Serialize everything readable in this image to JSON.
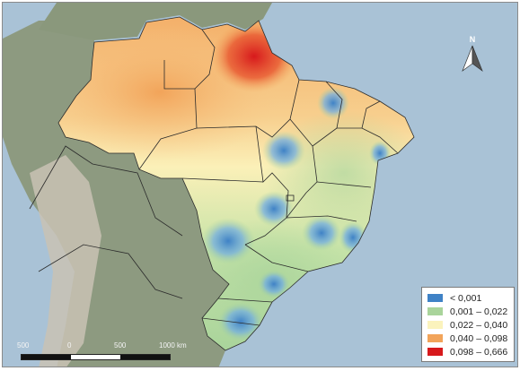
{
  "map": {
    "legend": {
      "items": [
        {
          "label": "< 0,001",
          "color": "#3f82c6"
        },
        {
          "label": "0,001 – 0,022",
          "color": "#a9d49b"
        },
        {
          "label": "0,022 – 0,040",
          "color": "#fbf3bd"
        },
        {
          "label": "0,040 – 0,098",
          "color": "#f2a45a"
        },
        {
          "label": "0,098 – 0,666",
          "color": "#d7191c"
        }
      ]
    },
    "scalebar": {
      "labels": [
        "500",
        "0",
        "500",
        "1000 km"
      ]
    },
    "north_arrow": {
      "letter": "N",
      "icon": "north-arrow-icon"
    },
    "colors": {
      "ocean": "#a9c2d6",
      "land_outside": "#8d9a80",
      "andes": "#c9c2b4",
      "border": "#2b2b2b"
    }
  }
}
